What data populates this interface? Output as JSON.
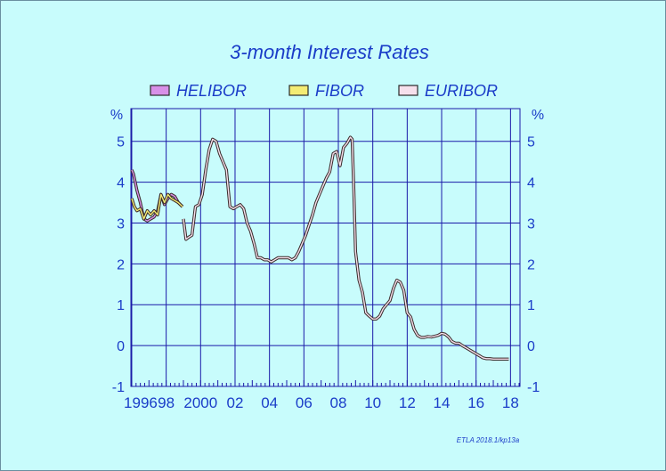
{
  "chart_data": {
    "type": "line",
    "title": "3-month  Interest  Rates",
    "unit_left": "%",
    "unit_right": "%",
    "credit": "ETLA 2018.1/kp13a",
    "xlim": [
      1995.95,
      2018.55
    ],
    "ylim": [
      -1,
      5.8
    ],
    "y_ticks": [
      -1,
      0,
      1,
      2,
      3,
      4,
      5
    ],
    "x_ticks": [
      {
        "value": 1996,
        "label": "1996"
      },
      {
        "value": 1998,
        "label": "98"
      },
      {
        "value": 2000,
        "label": "2000"
      },
      {
        "value": 2002,
        "label": "02"
      },
      {
        "value": 2004,
        "label": "04"
      },
      {
        "value": 2006,
        "label": "06"
      },
      {
        "value": 2008,
        "label": "08"
      },
      {
        "value": 2010,
        "label": "10"
      },
      {
        "value": 2012,
        "label": "12"
      },
      {
        "value": 2014,
        "label": "14"
      },
      {
        "value": 2016,
        "label": "16"
      },
      {
        "value": 2018,
        "label": "18"
      }
    ],
    "grid": true,
    "legend_position": "top",
    "series": [
      {
        "name": "HELIBOR",
        "color": "#d890e8",
        "x": [
          1996.0,
          1996.1,
          1996.3,
          1996.5,
          1996.7,
          1996.9,
          1997.1,
          1997.3,
          1997.5,
          1997.7,
          1997.9,
          1998.1,
          1998.3,
          1998.5,
          1998.7,
          1998.95
        ],
        "y": [
          4.3,
          4.2,
          3.8,
          3.5,
          3.1,
          3.05,
          3.1,
          3.15,
          3.3,
          3.7,
          3.45,
          3.6,
          3.7,
          3.65,
          3.5,
          3.4
        ]
      },
      {
        "name": "FIBOR",
        "color": "#f4ec74",
        "x": [
          1996.0,
          1996.15,
          1996.3,
          1996.5,
          1996.7,
          1996.9,
          1997.1,
          1997.3,
          1997.5,
          1997.7,
          1997.9,
          1998.1,
          1998.3,
          1998.5,
          1998.7,
          1998.95
        ],
        "y": [
          3.6,
          3.4,
          3.3,
          3.35,
          3.1,
          3.3,
          3.2,
          3.3,
          3.2,
          3.7,
          3.5,
          3.7,
          3.6,
          3.55,
          3.5,
          3.4
        ]
      },
      {
        "name": "EURIBOR",
        "color": "#f6e0ec",
        "x": [
          1999.0,
          1999.15,
          1999.3,
          1999.5,
          1999.7,
          1999.9,
          2000.1,
          2000.3,
          2000.5,
          2000.7,
          2000.9,
          2001.1,
          2001.3,
          2001.5,
          2001.7,
          2001.9,
          2002.1,
          2002.3,
          2002.5,
          2002.7,
          2002.9,
          2003.1,
          2003.3,
          2003.5,
          2003.7,
          2003.9,
          2004.1,
          2004.3,
          2004.5,
          2004.7,
          2004.9,
          2005.1,
          2005.3,
          2005.5,
          2005.7,
          2005.9,
          2006.1,
          2006.3,
          2006.5,
          2006.7,
          2006.9,
          2007.1,
          2007.3,
          2007.5,
          2007.7,
          2007.9,
          2008.1,
          2008.3,
          2008.5,
          2008.7,
          2008.8,
          2008.9,
          2009.0,
          2009.2,
          2009.4,
          2009.6,
          2009.8,
          2010.0,
          2010.2,
          2010.4,
          2010.6,
          2010.8,
          2011.0,
          2011.2,
          2011.4,
          2011.6,
          2011.8,
          2012.0,
          2012.2,
          2012.4,
          2012.6,
          2012.8,
          2013.0,
          2013.2,
          2013.4,
          2013.6,
          2013.8,
          2014.0,
          2014.2,
          2014.4,
          2014.6,
          2014.8,
          2015.0,
          2015.2,
          2015.4,
          2015.6,
          2015.8,
          2016.0,
          2016.2,
          2016.4,
          2016.6,
          2016.8,
          2017.0,
          2017.2,
          2017.4,
          2017.6,
          2017.9
        ],
        "y": [
          3.1,
          2.6,
          2.65,
          2.7,
          3.4,
          3.45,
          3.7,
          4.3,
          4.8,
          5.05,
          5.0,
          4.7,
          4.5,
          4.3,
          3.4,
          3.35,
          3.4,
          3.45,
          3.35,
          3.0,
          2.8,
          2.5,
          2.15,
          2.15,
          2.1,
          2.1,
          2.05,
          2.1,
          2.15,
          2.15,
          2.15,
          2.15,
          2.1,
          2.15,
          2.3,
          2.5,
          2.7,
          2.95,
          3.2,
          3.5,
          3.7,
          3.9,
          4.1,
          4.25,
          4.7,
          4.75,
          4.4,
          4.85,
          4.95,
          5.1,
          5.05,
          3.8,
          2.3,
          1.6,
          1.3,
          0.8,
          0.72,
          0.65,
          0.65,
          0.72,
          0.9,
          1.0,
          1.1,
          1.4,
          1.6,
          1.55,
          1.35,
          0.8,
          0.7,
          0.4,
          0.25,
          0.2,
          0.2,
          0.22,
          0.21,
          0.23,
          0.25,
          0.3,
          0.28,
          0.21,
          0.1,
          0.06,
          0.06,
          0.0,
          -0.05,
          -0.1,
          -0.15,
          -0.2,
          -0.25,
          -0.3,
          -0.32,
          -0.32,
          -0.33,
          -0.33,
          -0.33,
          -0.33,
          -0.33
        ]
      }
    ]
  }
}
